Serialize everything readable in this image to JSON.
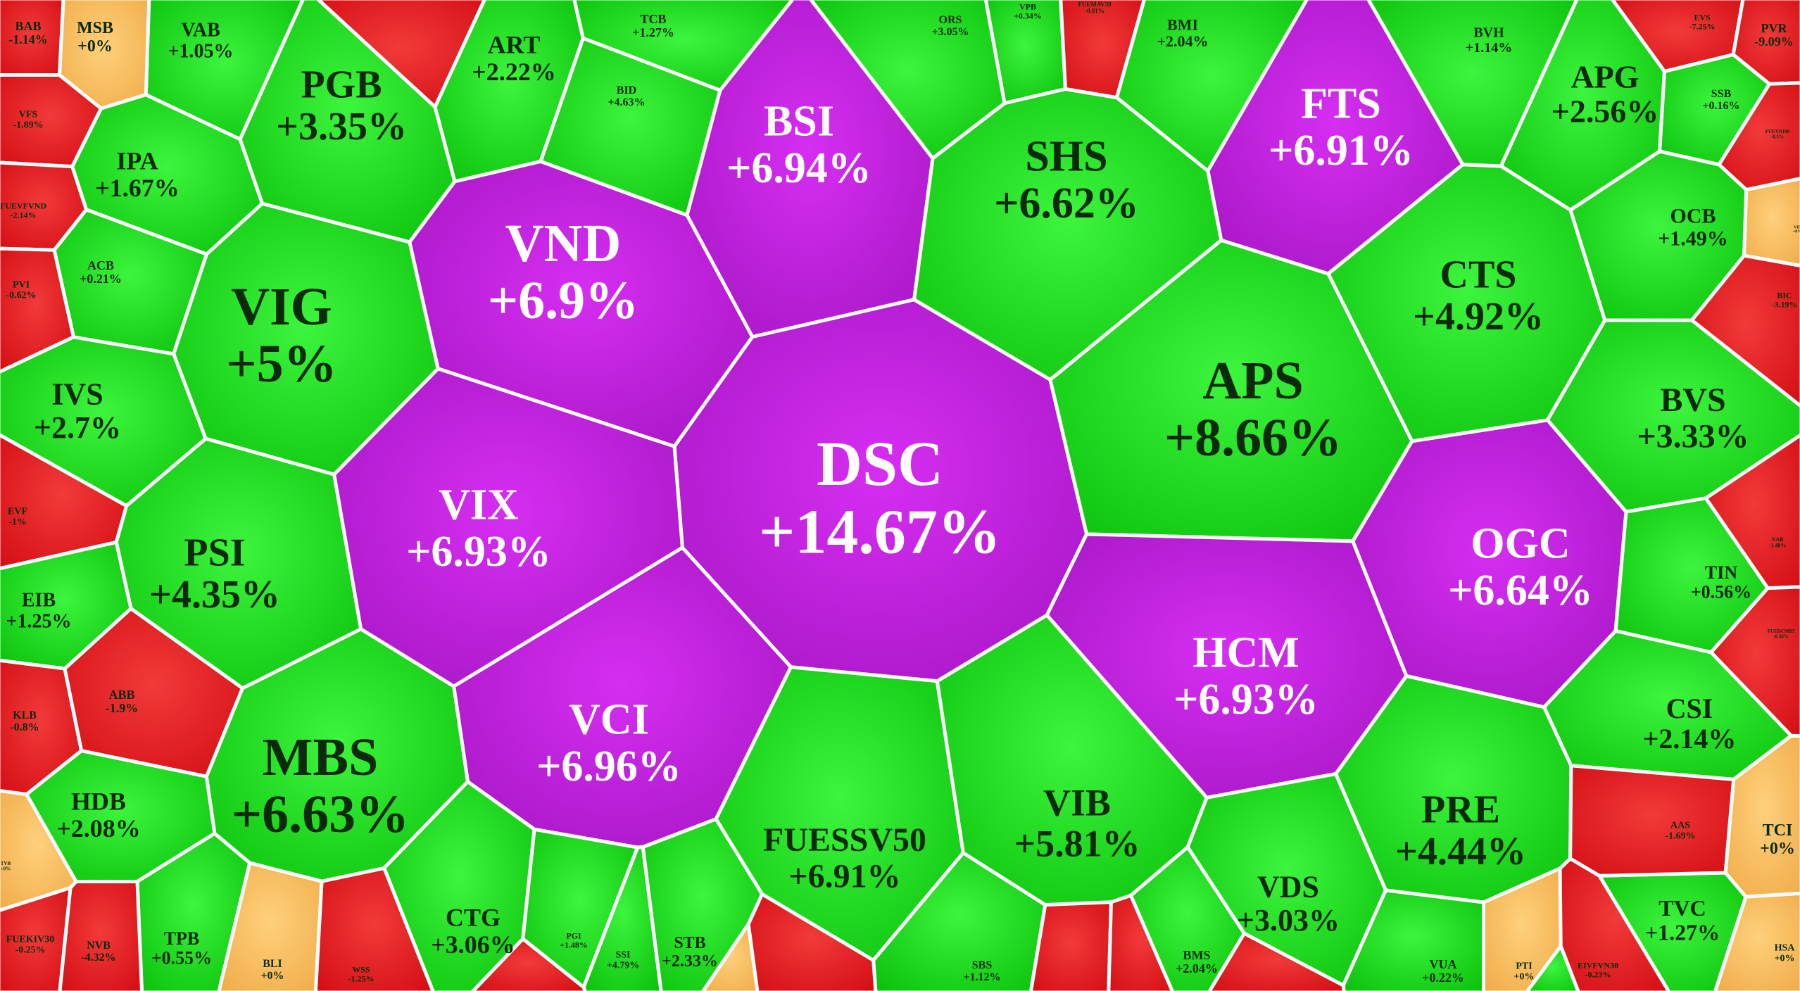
{
  "colors": {
    "ceiling": "#c21ee0",
    "up": "#11d411",
    "down": "#e3141a",
    "flat": "#f6bb5e",
    "text_dark": "#0b2a0b",
    "text_light": "#ffffff",
    "border": "#ffffff"
  },
  "chart_data": {
    "type": "heatmap",
    "subtype": "voronoi-treemap",
    "title": "",
    "legend": "none",
    "cells": [
      {
        "ticker": "DSC",
        "pct_label": "+14.67%",
        "change_pct": 14.67,
        "status": "ceiling"
      },
      {
        "ticker": "APS",
        "pct_label": "+8.66%",
        "change_pct": 8.66,
        "status": "up"
      },
      {
        "ticker": "VND",
        "pct_label": "+6.9%",
        "change_pct": 6.9,
        "status": "ceiling"
      },
      {
        "ticker": "VIX",
        "pct_label": "+6.93%",
        "change_pct": 6.93,
        "status": "ceiling"
      },
      {
        "ticker": "BSI",
        "pct_label": "+6.94%",
        "change_pct": 6.94,
        "status": "ceiling"
      },
      {
        "ticker": "VCI",
        "pct_label": "+6.96%",
        "change_pct": 6.96,
        "status": "ceiling"
      },
      {
        "ticker": "HCM",
        "pct_label": "+6.93%",
        "change_pct": 6.93,
        "status": "ceiling"
      },
      {
        "ticker": "OGC",
        "pct_label": "+6.64%",
        "change_pct": 6.64,
        "status": "ceiling"
      },
      {
        "ticker": "FTS",
        "pct_label": "+6.91%",
        "change_pct": 6.91,
        "status": "ceiling"
      },
      {
        "ticker": "SHS",
        "pct_label": "+6.62%",
        "change_pct": 6.62,
        "status": "up"
      },
      {
        "ticker": "MBS",
        "pct_label": "+6.63%",
        "change_pct": 6.63,
        "status": "up"
      },
      {
        "ticker": "VIG",
        "pct_label": "+5%",
        "change_pct": 5.0,
        "status": "up"
      },
      {
        "ticker": "FUESSV50",
        "pct_label": "+6.91%",
        "change_pct": 6.91,
        "status": "up"
      },
      {
        "ticker": "VIB",
        "pct_label": "+5.81%",
        "change_pct": 5.81,
        "status": "up"
      },
      {
        "ticker": "CTS",
        "pct_label": "+4.92%",
        "change_pct": 4.92,
        "status": "up"
      },
      {
        "ticker": "PRE",
        "pct_label": "+4.44%",
        "change_pct": 4.44,
        "status": "up"
      },
      {
        "ticker": "PSI",
        "pct_label": "+4.35%",
        "change_pct": 4.35,
        "status": "up"
      },
      {
        "ticker": "PGB",
        "pct_label": "+3.35%",
        "change_pct": 3.35,
        "status": "up"
      },
      {
        "ticker": "BVS",
        "pct_label": "+3.33%",
        "change_pct": 3.33,
        "status": "up"
      },
      {
        "ticker": "VDS",
        "pct_label": "+3.03%",
        "change_pct": 3.03,
        "status": "up"
      },
      {
        "ticker": "CTG",
        "pct_label": "+3.06%",
        "change_pct": 3.06,
        "status": "up"
      },
      {
        "ticker": "IVS",
        "pct_label": "+2.7%",
        "change_pct": 2.7,
        "status": "up"
      },
      {
        "ticker": "APG",
        "pct_label": "+2.56%",
        "change_pct": 2.56,
        "status": "up"
      },
      {
        "ticker": "ART",
        "pct_label": "+2.22%",
        "change_pct": 2.22,
        "status": "up"
      },
      {
        "ticker": "CSI",
        "pct_label": "+2.14%",
        "change_pct": 2.14,
        "status": "up"
      },
      {
        "ticker": "HDB",
        "pct_label": "+2.08%",
        "change_pct": 2.08,
        "status": "up"
      },
      {
        "ticker": "IPA",
        "pct_label": "+1.67%",
        "change_pct": 1.67,
        "status": "up"
      },
      {
        "ticker": "OCB",
        "pct_label": "+1.49%",
        "change_pct": 1.49,
        "status": "up"
      },
      {
        "ticker": "TVC",
        "pct_label": "+1.27%",
        "change_pct": 1.27,
        "status": "up"
      },
      {
        "ticker": "EIB",
        "pct_label": "+1.25%",
        "change_pct": 1.25,
        "status": "up"
      },
      {
        "ticker": "VAB",
        "pct_label": "+1.05%",
        "change_pct": 1.05,
        "status": "up"
      },
      {
        "ticker": "BMI",
        "pct_label": "+2.04%",
        "change_pct": 2.04,
        "status": "up"
      },
      {
        "ticker": "TIN",
        "pct_label": "+0.56%",
        "change_pct": 0.56,
        "status": "up"
      },
      {
        "ticker": "TPB",
        "pct_label": "+0.55%",
        "change_pct": 0.55,
        "status": "up"
      },
      {
        "ticker": "STB",
        "pct_label": "+2.33%",
        "change_pct": 2.33,
        "status": "up"
      },
      {
        "ticker": "BVH",
        "pct_label": "+1.14%",
        "change_pct": 1.14,
        "status": "up"
      },
      {
        "ticker": "TCB",
        "pct_label": "+1.27%",
        "change_pct": 1.27,
        "status": "up"
      },
      {
        "ticker": "ORS",
        "pct_label": "+3.05%",
        "change_pct": 3.05,
        "status": "up"
      },
      {
        "ticker": "BID",
        "pct_label": "+4.63%",
        "change_pct": 4.63,
        "status": "up"
      },
      {
        "ticker": "ACB",
        "pct_label": "+0.21%",
        "change_pct": 0.21,
        "status": "up"
      },
      {
        "ticker": "SSB",
        "pct_label": "+0.16%",
        "change_pct": 0.16,
        "status": "up"
      },
      {
        "ticker": "SBS",
        "pct_label": "+1.12%",
        "change_pct": 1.12,
        "status": "up"
      },
      {
        "ticker": "BMS",
        "pct_label": "+2.04%",
        "change_pct": 2.04,
        "status": "up"
      },
      {
        "ticker": "VUA",
        "pct_label": "+0.22%",
        "change_pct": 0.22,
        "status": "up"
      },
      {
        "ticker": "PGI",
        "pct_label": "+1.48%",
        "change_pct": 1.48,
        "status": "up"
      },
      {
        "ticker": "SSI",
        "pct_label": "+4.79%",
        "change_pct": 4.79,
        "status": "up"
      },
      {
        "ticker": "VPB",
        "pct_label": "+0.34%",
        "change_pct": 0.34,
        "status": "up"
      },
      {
        "ticker": "MSB",
        "pct_label": "+0%",
        "change_pct": 0.0,
        "status": "flat"
      },
      {
        "ticker": "TCI",
        "pct_label": "+0%",
        "change_pct": 0.0,
        "status": "flat"
      },
      {
        "ticker": "BLI",
        "pct_label": "+0%",
        "change_pct": 0.0,
        "status": "flat"
      },
      {
        "ticker": "PTI",
        "pct_label": "+0%",
        "change_pct": 0.0,
        "status": "flat"
      },
      {
        "ticker": "BAB",
        "pct_label": "-1.14%",
        "change_pct": -1.14,
        "status": "down"
      },
      {
        "ticker": "VFS",
        "pct_label": "-1.89%",
        "change_pct": -1.89,
        "status": "down"
      },
      {
        "ticker": "FUEVFVND",
        "pct_label": "-2.14%",
        "change_pct": -2.14,
        "status": "down"
      },
      {
        "ticker": "PVI",
        "pct_label": "-0.62%",
        "change_pct": -0.62,
        "status": "down"
      },
      {
        "ticker": "EVF",
        "pct_label": "-1%",
        "change_pct": -1.0,
        "status": "down"
      },
      {
        "ticker": "KLB",
        "pct_label": "-0.8%",
        "change_pct": -0.8,
        "status": "down"
      },
      {
        "ticker": "ABB",
        "pct_label": "-1.9%",
        "change_pct": -1.9,
        "status": "down"
      },
      {
        "ticker": "FUEKIV30",
        "pct_label": "-0.25%",
        "change_pct": -0.25,
        "status": "down"
      },
      {
        "ticker": "NVB",
        "pct_label": "-4.32%",
        "change_pct": -4.32,
        "status": "down"
      },
      {
        "ticker": "WSS",
        "pct_label": "-1.25%",
        "change_pct": -1.25,
        "status": "down"
      },
      {
        "ticker": "EVS",
        "pct_label": "-7.25%",
        "change_pct": -7.25,
        "status": "down"
      },
      {
        "ticker": "PVR",
        "pct_label": "-9.09%",
        "change_pct": -9.09,
        "status": "down"
      },
      {
        "ticker": "BIC",
        "pct_label": "-3.19%",
        "change_pct": -3.19,
        "status": "down"
      },
      {
        "ticker": "AAS",
        "pct_label": "-1.69%",
        "change_pct": -1.69,
        "status": "down"
      },
      {
        "ticker": "EIVFVN30",
        "pct_label": "-0.23%",
        "change_pct": -0.23,
        "status": "down"
      },
      {
        "ticker": "HSA",
        "pct_label": "+0%",
        "change_pct": 0.0,
        "status": "flat"
      },
      {
        "ticker": "FUEMAV30",
        "pct_label": "-0.81%",
        "change_pct": -0.81,
        "status": "down"
      },
      {
        "ticker": "FUEVN100",
        "pct_label": "-0.5%",
        "change_pct": -0.5,
        "status": "down"
      },
      {
        "ticker": "NAB",
        "pct_label": "-1.48%",
        "change_pct": -1.48,
        "status": "down"
      },
      {
        "ticker": "FUEDCMID",
        "pct_label": "-0.36%",
        "change_pct": -0.36,
        "status": "down"
      },
      {
        "ticker": "TVB",
        "pct_label": "+0%",
        "change_pct": 0.0,
        "status": "flat"
      },
      {
        "ticker": "VIF",
        "pct_label": "+0%",
        "change_pct": 0.0,
        "status": "flat"
      }
    ]
  }
}
